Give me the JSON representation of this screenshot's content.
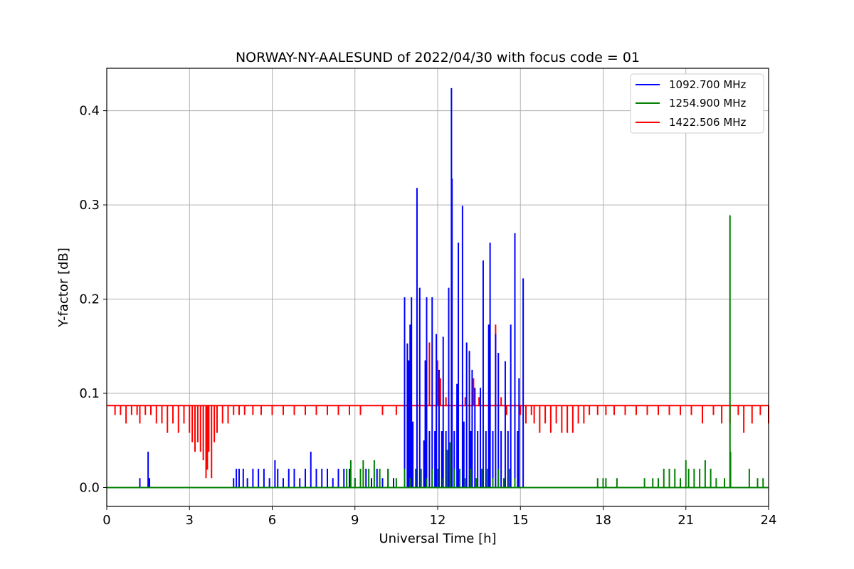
{
  "chart_data": {
    "type": "line",
    "title": "NORWAY-NY-AALESUND of 2022/04/30 with focus code = 01",
    "xlabel": "Universal Time [h]",
    "ylabel": "Y-factor [dB]",
    "xlim": [
      0,
      24
    ],
    "ylim": [
      -0.02,
      0.445
    ],
    "xticks": [
      0,
      3,
      6,
      9,
      12,
      15,
      18,
      21,
      24
    ],
    "yticks": [
      0.0,
      0.1,
      0.2,
      0.3,
      0.4
    ],
    "xtick_labels": [
      "0",
      "3",
      "6",
      "9",
      "12",
      "15",
      "18",
      "21",
      "24"
    ],
    "ytick_labels": [
      "0.0",
      "0.1",
      "0.2",
      "0.3",
      "0.4"
    ],
    "grid": true,
    "legend_position": "top-right",
    "series": [
      {
        "name": "1092.700 MHz",
        "color": "#0000ff",
        "baseline": 0.0,
        "spikes": [
          [
            1.2,
            0.01
          ],
          [
            1.5,
            0.038
          ],
          [
            1.55,
            0.01
          ],
          [
            4.6,
            0.01
          ],
          [
            4.7,
            0.02
          ],
          [
            4.8,
            0.02
          ],
          [
            4.95,
            0.02
          ],
          [
            5.1,
            0.01
          ],
          [
            5.3,
            0.02
          ],
          [
            5.5,
            0.02
          ],
          [
            5.7,
            0.02
          ],
          [
            5.9,
            0.01
          ],
          [
            6.1,
            0.029
          ],
          [
            6.2,
            0.02
          ],
          [
            6.4,
            0.01
          ],
          [
            6.6,
            0.02
          ],
          [
            6.8,
            0.02
          ],
          [
            7.0,
            0.01
          ],
          [
            7.2,
            0.02
          ],
          [
            7.4,
            0.038
          ],
          [
            7.6,
            0.02
          ],
          [
            7.8,
            0.02
          ],
          [
            8.0,
            0.02
          ],
          [
            8.2,
            0.01
          ],
          [
            8.4,
            0.02
          ],
          [
            8.6,
            0.02
          ],
          [
            8.8,
            0.02
          ],
          [
            9.0,
            0.01
          ],
          [
            9.2,
            0.02
          ],
          [
            9.4,
            0.02
          ],
          [
            9.6,
            0.01
          ],
          [
            9.8,
            0.02
          ],
          [
            10.0,
            0.01
          ],
          [
            10.2,
            0.02
          ],
          [
            10.4,
            0.01
          ],
          [
            10.8,
            0.202
          ],
          [
            10.9,
            0.153
          ],
          [
            10.95,
            0.135
          ],
          [
            11.0,
            0.173
          ],
          [
            11.05,
            0.202
          ],
          [
            11.1,
            0.07
          ],
          [
            11.25,
            0.318
          ],
          [
            11.35,
            0.212
          ],
          [
            11.5,
            0.05
          ],
          [
            11.55,
            0.135
          ],
          [
            11.6,
            0.202
          ],
          [
            11.7,
            0.06
          ],
          [
            11.8,
            0.202
          ],
          [
            11.9,
            0.06
          ],
          [
            11.95,
            0.163
          ],
          [
            12.05,
            0.125
          ],
          [
            12.15,
            0.06
          ],
          [
            12.2,
            0.16
          ],
          [
            12.3,
            0.06
          ],
          [
            12.4,
            0.212
          ],
          [
            12.5,
            0.424
          ],
          [
            12.52,
            0.328
          ],
          [
            12.6,
            0.06
          ],
          [
            12.7,
            0.11
          ],
          [
            12.75,
            0.26
          ],
          [
            12.9,
            0.299
          ],
          [
            12.95,
            0.07
          ],
          [
            13.05,
            0.154
          ],
          [
            13.15,
            0.145
          ],
          [
            13.2,
            0.06
          ],
          [
            13.25,
            0.125
          ],
          [
            13.35,
            0.106
          ],
          [
            13.45,
            0.06
          ],
          [
            13.55,
            0.106
          ],
          [
            13.65,
            0.241
          ],
          [
            13.75,
            0.06
          ],
          [
            13.85,
            0.173
          ],
          [
            13.9,
            0.26
          ],
          [
            14.0,
            0.06
          ],
          [
            14.1,
            0.163
          ],
          [
            14.2,
            0.143
          ],
          [
            14.3,
            0.06
          ],
          [
            14.45,
            0.134
          ],
          [
            14.55,
            0.06
          ],
          [
            14.65,
            0.173
          ],
          [
            14.8,
            0.27
          ],
          [
            14.9,
            0.06
          ],
          [
            14.95,
            0.116
          ],
          [
            15.1,
            0.222
          ]
        ]
      },
      {
        "name": "1254.900 MHz",
        "color": "#008000",
        "baseline": 0.0,
        "spikes": [
          [
            8.7,
            0.02
          ],
          [
            8.85,
            0.029
          ],
          [
            9.0,
            0.01
          ],
          [
            9.2,
            0.02
          ],
          [
            9.3,
            0.029
          ],
          [
            9.5,
            0.02
          ],
          [
            9.7,
            0.029
          ],
          [
            9.9,
            0.02
          ],
          [
            10.2,
            0.02
          ],
          [
            10.5,
            0.01
          ],
          [
            10.8,
            0.02
          ],
          [
            11.0,
            0.01
          ],
          [
            11.2,
            0.02
          ],
          [
            11.4,
            0.02
          ],
          [
            11.6,
            0.01
          ],
          [
            11.8,
            0.02
          ],
          [
            12.0,
            0.02
          ],
          [
            12.2,
            0.01
          ],
          [
            12.35,
            0.04
          ],
          [
            12.45,
            0.048
          ],
          [
            12.6,
            0.02
          ],
          [
            12.8,
            0.02
          ],
          [
            13.0,
            0.01
          ],
          [
            13.2,
            0.02
          ],
          [
            13.4,
            0.01
          ],
          [
            13.6,
            0.02
          ],
          [
            13.8,
            0.02
          ],
          [
            14.0,
            0.01
          ],
          [
            14.2,
            0.02
          ],
          [
            14.4,
            0.01
          ],
          [
            14.6,
            0.02
          ],
          [
            14.8,
            0.01
          ],
          [
            17.8,
            0.01
          ],
          [
            18.0,
            0.01
          ],
          [
            18.1,
            0.01
          ],
          [
            18.5,
            0.01
          ],
          [
            19.5,
            0.01
          ],
          [
            19.8,
            0.01
          ],
          [
            20.0,
            0.01
          ],
          [
            20.2,
            0.02
          ],
          [
            20.4,
            0.02
          ],
          [
            20.6,
            0.02
          ],
          [
            20.8,
            0.01
          ],
          [
            21.0,
            0.029
          ],
          [
            21.1,
            0.02
          ],
          [
            21.3,
            0.02
          ],
          [
            21.5,
            0.02
          ],
          [
            21.7,
            0.029
          ],
          [
            21.9,
            0.02
          ],
          [
            22.1,
            0.01
          ],
          [
            22.4,
            0.01
          ],
          [
            22.6,
            0.289
          ],
          [
            22.62,
            0.038
          ],
          [
            23.3,
            0.02
          ],
          [
            23.6,
            0.01
          ],
          [
            23.8,
            0.01
          ]
        ]
      },
      {
        "name": "1422.506 MHz",
        "color": "#ff0000",
        "baseline": 0.087,
        "dips": [
          [
            0.3,
            0.077
          ],
          [
            0.5,
            0.077
          ],
          [
            0.7,
            0.068
          ],
          [
            0.9,
            0.077
          ],
          [
            1.1,
            0.077
          ],
          [
            1.2,
            0.068
          ],
          [
            1.4,
            0.077
          ],
          [
            1.6,
            0.077
          ],
          [
            1.8,
            0.068
          ],
          [
            2.0,
            0.068
          ],
          [
            2.2,
            0.058
          ],
          [
            2.4,
            0.068
          ],
          [
            2.6,
            0.058
          ],
          [
            2.8,
            0.068
          ],
          [
            3.0,
            0.058
          ],
          [
            3.1,
            0.048
          ],
          [
            3.2,
            0.038
          ],
          [
            3.3,
            0.048
          ],
          [
            3.4,
            0.038
          ],
          [
            3.5,
            0.029
          ],
          [
            3.6,
            0.01
          ],
          [
            3.65,
            0.019
          ],
          [
            3.7,
            0.038
          ],
          [
            3.8,
            0.01
          ],
          [
            3.9,
            0.048
          ],
          [
            4.0,
            0.058
          ],
          [
            4.2,
            0.068
          ],
          [
            4.4,
            0.068
          ],
          [
            4.6,
            0.077
          ],
          [
            4.8,
            0.077
          ],
          [
            5.0,
            0.077
          ],
          [
            5.3,
            0.077
          ],
          [
            5.6,
            0.077
          ],
          [
            6.0,
            0.077
          ],
          [
            6.4,
            0.077
          ],
          [
            6.8,
            0.077
          ],
          [
            7.2,
            0.077
          ],
          [
            7.6,
            0.077
          ],
          [
            8.0,
            0.077
          ],
          [
            8.4,
            0.077
          ],
          [
            8.8,
            0.077
          ],
          [
            9.2,
            0.077
          ],
          [
            10.0,
            0.077
          ],
          [
            10.5,
            0.077
          ],
          [
            11.7,
            0.154
          ],
          [
            12.0,
            0.135
          ],
          [
            12.1,
            0.116
          ],
          [
            12.3,
            0.096
          ],
          [
            13.0,
            0.096
          ],
          [
            13.3,
            0.116
          ],
          [
            13.5,
            0.096
          ],
          [
            14.1,
            0.173
          ],
          [
            14.3,
            0.096
          ],
          [
            14.5,
            0.077
          ],
          [
            15.0,
            0.077
          ],
          [
            15.2,
            0.068
          ],
          [
            15.4,
            0.077
          ],
          [
            15.5,
            0.068
          ],
          [
            15.7,
            0.058
          ],
          [
            15.9,
            0.068
          ],
          [
            16.1,
            0.058
          ],
          [
            16.3,
            0.068
          ],
          [
            16.5,
            0.058
          ],
          [
            16.7,
            0.058
          ],
          [
            16.9,
            0.058
          ],
          [
            17.1,
            0.068
          ],
          [
            17.3,
            0.068
          ],
          [
            17.5,
            0.077
          ],
          [
            17.8,
            0.077
          ],
          [
            18.1,
            0.077
          ],
          [
            18.4,
            0.077
          ],
          [
            18.8,
            0.077
          ],
          [
            19.2,
            0.077
          ],
          [
            19.6,
            0.077
          ],
          [
            20.0,
            0.077
          ],
          [
            20.4,
            0.077
          ],
          [
            20.8,
            0.077
          ],
          [
            21.2,
            0.077
          ],
          [
            21.6,
            0.068
          ],
          [
            22.0,
            0.077
          ],
          [
            22.3,
            0.068
          ],
          [
            22.6,
            0.068
          ],
          [
            22.9,
            0.077
          ],
          [
            23.1,
            0.058
          ],
          [
            23.4,
            0.068
          ],
          [
            23.7,
            0.077
          ],
          [
            24.0,
            0.068
          ]
        ]
      }
    ]
  }
}
